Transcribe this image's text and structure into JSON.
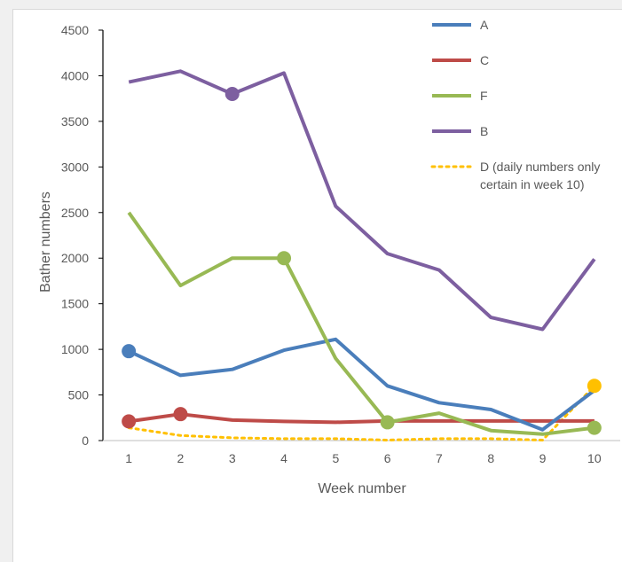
{
  "chart_data": {
    "type": "line",
    "xlabel": "Week number",
    "ylabel": "Bather numbers",
    "ylim": [
      0,
      4500
    ],
    "yticks": [
      0,
      500,
      1000,
      1500,
      2000,
      2500,
      3000,
      3500,
      4000,
      4500
    ],
    "categories": [
      "1",
      "2",
      "3",
      "4",
      "5",
      "6",
      "7",
      "8",
      "9",
      "10"
    ],
    "grid": false,
    "legend_position": "top-right",
    "series": [
      {
        "name": "A",
        "color": "#4a7ebb",
        "style": "solid",
        "values": [
          980,
          715,
          780,
          990,
          1110,
          600,
          415,
          340,
          120,
          550
        ],
        "markers": [
          1
        ]
      },
      {
        "name": "C",
        "color": "#be4b48",
        "style": "solid",
        "values": [
          210,
          290,
          225,
          210,
          200,
          215,
          215,
          215,
          215,
          215
        ],
        "markers": [
          1,
          2
        ]
      },
      {
        "name": "F",
        "color": "#98b954",
        "style": "solid",
        "values": [
          2500,
          1700,
          2000,
          2000,
          900,
          200,
          300,
          110,
          70,
          140
        ],
        "markers": [
          4,
          6,
          10
        ]
      },
      {
        "name": "B",
        "color": "#7d5fa0",
        "style": "solid",
        "values": [
          3930,
          4050,
          3800,
          4030,
          2570,
          2050,
          1870,
          1350,
          1220,
          1990
        ],
        "markers": [
          3
        ]
      },
      {
        "name": "D (daily numbers only certain in week 10)",
        "legend_lines": [
          "D (daily numbers only",
          "certain in week 10)"
        ],
        "color": "#ffc000",
        "style": "dotted",
        "values": [
          140,
          55,
          30,
          20,
          20,
          5,
          20,
          20,
          5,
          600
        ],
        "markers": [
          10
        ]
      }
    ]
  }
}
